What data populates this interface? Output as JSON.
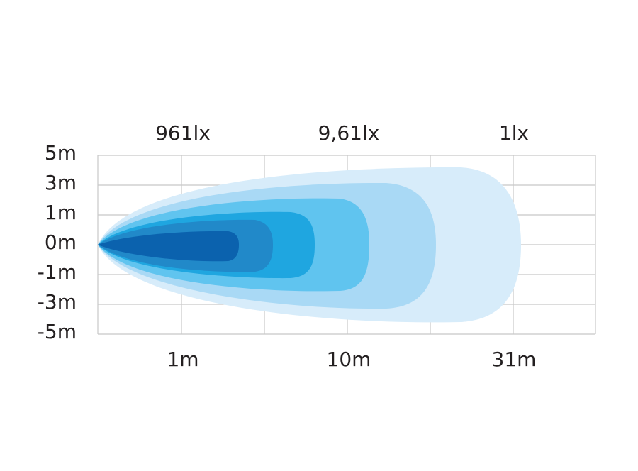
{
  "top_labels": [
    "961lx",
    "9,61lx",
    "1lx"
  ],
  "y_labels": [
    "5m",
    "3m",
    "1m",
    "0m",
    "-1m",
    "-3m",
    "-5m"
  ],
  "bottom_labels": [
    "1m",
    "10m",
    "31m"
  ]
}
